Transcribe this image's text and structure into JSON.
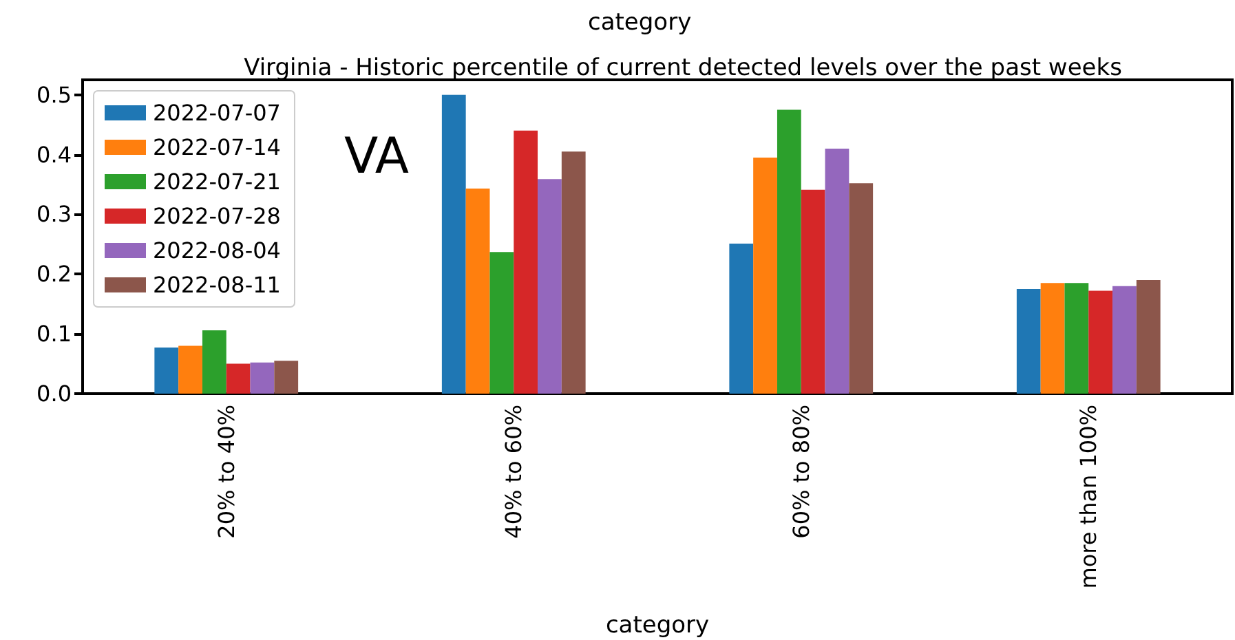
{
  "chart_data": {
    "type": "bar",
    "title": "Virginia - Historic percentile of current detected levels over the past weeks",
    "xlabel": "category",
    "annotations": [
      "category",
      "VA"
    ],
    "categories": [
      "20% to 40%",
      "40% to 60%",
      "60% to 80%",
      "more than 100%"
    ],
    "series": [
      {
        "name": "2022-07-07",
        "color": "#1f77b4",
        "values": [
          0.077,
          0.5,
          0.251,
          0.175
        ]
      },
      {
        "name": "2022-07-14",
        "color": "#ff7f0e",
        "values": [
          0.08,
          0.343,
          0.395,
          0.185
        ]
      },
      {
        "name": "2022-07-21",
        "color": "#2ca02c",
        "values": [
          0.106,
          0.237,
          0.475,
          0.185
        ]
      },
      {
        "name": "2022-07-28",
        "color": "#d62728",
        "values": [
          0.05,
          0.44,
          0.341,
          0.172
        ]
      },
      {
        "name": "2022-08-04",
        "color": "#9467bd",
        "values": [
          0.052,
          0.359,
          0.41,
          0.18
        ]
      },
      {
        "name": "2022-08-11",
        "color": "#8c564b",
        "values": [
          0.055,
          0.405,
          0.352,
          0.19
        ]
      }
    ],
    "ylim": [
      0,
      0.525
    ],
    "yticks": [
      {
        "value": 0,
        "label": "0.0"
      },
      0.1,
      0.2,
      0.3,
      0.4,
      0.5
    ],
    "grid": false,
    "legend": "top left"
  }
}
